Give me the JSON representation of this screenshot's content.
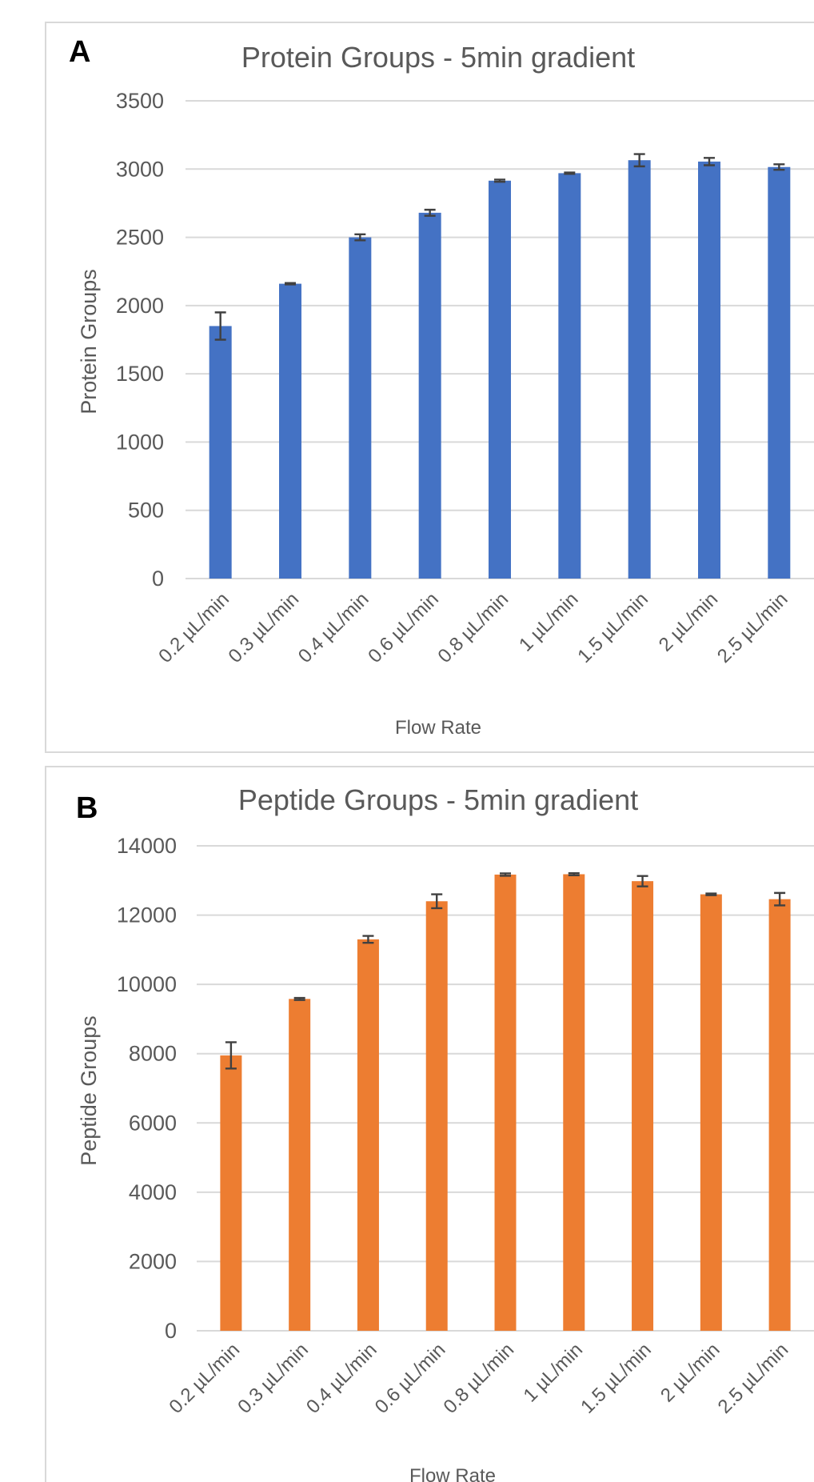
{
  "chart_data": [
    {
      "type": "bar",
      "panel_label": "A",
      "title": "Protein Groups - 5min gradient",
      "xlabel": "Flow Rate",
      "ylabel": "Protein Groups",
      "ylim": [
        0,
        3500
      ],
      "yticks": [
        "0",
        "500",
        "1000",
        "1500",
        "2000",
        "2500",
        "3000",
        "3500"
      ],
      "grid": true,
      "color": "#4472C4",
      "categories": [
        "0.2 µL/min",
        "0.3 µL/min",
        "0.4 µL/min",
        "0.6 µL/min",
        "0.8 µL/min",
        "1 µL/min",
        "1.5 µL/min",
        "2 µL/min",
        "2.5 µL/min"
      ],
      "values": [
        1850,
        2160,
        2500,
        2680,
        2915,
        2970,
        3065,
        3055,
        3015
      ],
      "errors": [
        100,
        5,
        22,
        22,
        8,
        5,
        45,
        27,
        20
      ]
    },
    {
      "type": "bar",
      "panel_label": "B",
      "title": "Peptide Groups - 5min gradient",
      "xlabel": "Flow Rate",
      "ylabel": "Peptide Groups",
      "ylim": [
        0,
        14000
      ],
      "yticks": [
        "0",
        "2000",
        "4000",
        "6000",
        "8000",
        "10000",
        "12000",
        "14000"
      ],
      "grid": true,
      "color": "#ED7D31",
      "categories": [
        "0.2 µL/min",
        "0.3 µL/min",
        "0.4 µL/min",
        "0.6 µL/min",
        "0.8 µL/min",
        "1 µL/min",
        "1.5 µL/min",
        "2 µL/min",
        "2.5 µL/min"
      ],
      "values": [
        7950,
        9580,
        11300,
        12400,
        13170,
        13180,
        12980,
        12600,
        12460
      ],
      "errors": [
        380,
        30,
        100,
        200,
        35,
        30,
        150,
        25,
        180
      ]
    }
  ]
}
